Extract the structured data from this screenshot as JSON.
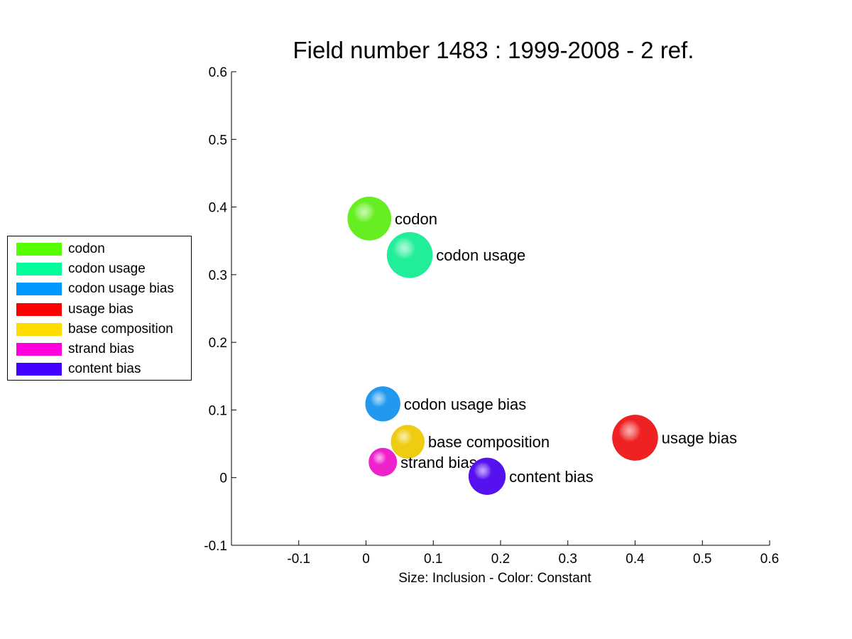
{
  "chart_data": {
    "type": "scatter",
    "title": "Field number 1483 : 1999-2008  - 2 ref.",
    "xlabel": "Size: Inclusion - Color: Constant",
    "ylabel": "",
    "xlim": [
      -0.2,
      0.6
    ],
    "ylim": [
      -0.1,
      0.6
    ],
    "xticks": [
      "-0.1",
      "0",
      "0.1",
      "0.2",
      "0.3",
      "0.4",
      "0.5",
      "0.6"
    ],
    "yticks": [
      "-0.1",
      "0",
      "0.1",
      "0.2",
      "0.3",
      "0.4",
      "0.5",
      "0.6"
    ],
    "grid": false,
    "legend_position": "left",
    "points": [
      {
        "label": "codon",
        "x": 0.005,
        "y": 0.383,
        "size": 0.065,
        "color": "#66ee22"
      },
      {
        "label": "codon usage",
        "x": 0.065,
        "y": 0.329,
        "size": 0.068,
        "color": "#22ee99"
      },
      {
        "label": "codon usage bias",
        "x": 0.025,
        "y": 0.109,
        "size": 0.052,
        "color": "#2299ee"
      },
      {
        "label": "usage bias",
        "x": 0.4,
        "y": 0.059,
        "size": 0.068,
        "color": "#ee2222"
      },
      {
        "label": "base composition",
        "x": 0.062,
        "y": 0.053,
        "size": 0.05,
        "color": "#eecc11"
      },
      {
        "label": "strand bias",
        "x": 0.025,
        "y": 0.023,
        "size": 0.042,
        "color": "#ee22cc"
      },
      {
        "label": "content bias",
        "x": 0.18,
        "y": 0.002,
        "size": 0.055,
        "color": "#5511ee"
      }
    ]
  },
  "legend": [
    {
      "label": "codon",
      "color": "#55ff00"
    },
    {
      "label": "codon usage",
      "color": "#00ff99"
    },
    {
      "label": "codon usage bias",
      "color": "#0099ff"
    },
    {
      "label": "usage bias",
      "color": "#ff0000"
    },
    {
      "label": "base composition",
      "color": "#ffdd00"
    },
    {
      "label": "strand bias",
      "color": "#ff00dd"
    },
    {
      "label": "content bias",
      "color": "#4400ff"
    }
  ]
}
